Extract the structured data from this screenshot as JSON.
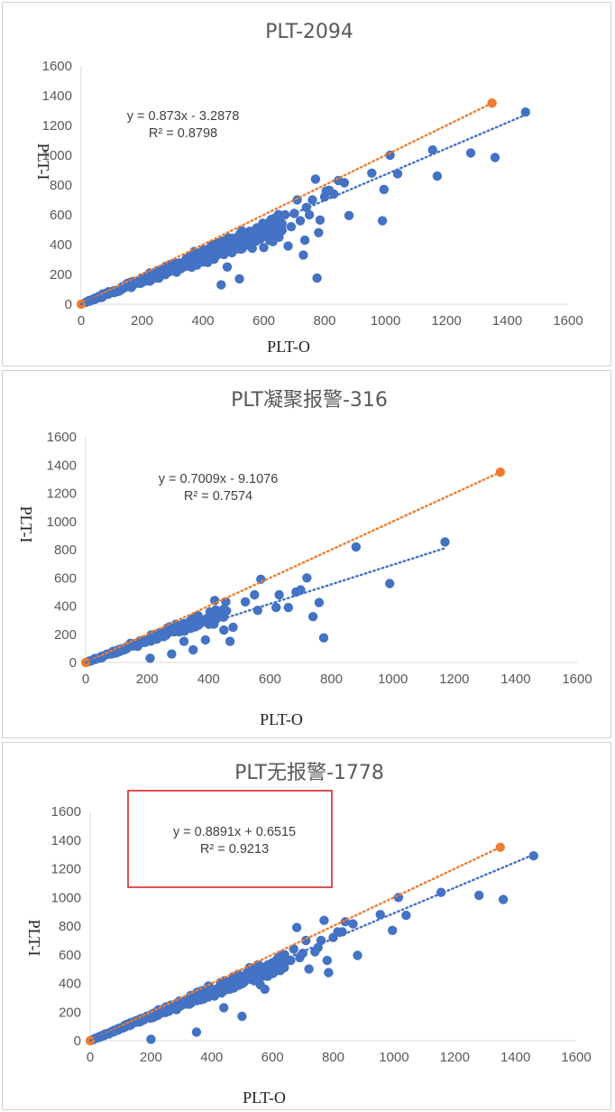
{
  "colors": {
    "series_points": "#4472c4",
    "identity_line": "#ed7d31",
    "highlight_box": "#d62728",
    "axis": "#d9d9d9",
    "text": "#595959"
  },
  "chart_data": [
    {
      "type": "scatter",
      "title": "PLT-2094",
      "xlabel": "PLT-O",
      "ylabel": "PLT-I",
      "xlim": [
        0,
        1600
      ],
      "ylim": [
        0,
        1600
      ],
      "xticks": [
        "0",
        "200",
        "400",
        "600",
        "800",
        "1000",
        "1200",
        "1400",
        "1600"
      ],
      "yticks": [
        "0",
        "200",
        "400",
        "600",
        "800",
        "1000",
        "1200",
        "1400",
        "1600"
      ],
      "grid": false,
      "trendline": {
        "equation": "y = 0.873x - 3.2878",
        "r2": "R² = 0.8798",
        "slope": 0.873,
        "intercept": -3.2878,
        "x_range": [
          0,
          1460
        ]
      },
      "identity_line": {
        "from": [
          0,
          0
        ],
        "to": [
          1350,
          1350
        ]
      },
      "series": [
        {
          "points": [
            [
              1460,
              1290
            ],
            [
              1360,
              985
            ],
            [
              1280,
              1015
            ],
            [
              1170,
              860
            ],
            [
              1155,
              1035
            ],
            [
              1040,
              875
            ],
            [
              1015,
              1000
            ],
            [
              990,
              560
            ],
            [
              995,
              770
            ],
            [
              955,
              880
            ],
            [
              880,
              595
            ],
            [
              865,
              815
            ],
            [
              845,
              830
            ],
            [
              830,
              740
            ],
            [
              815,
              765
            ],
            [
              805,
              760
            ],
            [
              800,
              720
            ],
            [
              780,
              480
            ],
            [
              785,
              565
            ],
            [
              775,
              175
            ],
            [
              770,
              840
            ],
            [
              760,
              700
            ],
            [
              750,
              600
            ],
            [
              740,
              650
            ],
            [
              735,
              430
            ],
            [
              730,
              330
            ],
            [
              720,
              560
            ],
            [
              710,
              700
            ],
            [
              700,
              610
            ],
            [
              690,
              520
            ],
            [
              680,
              390
            ],
            [
              670,
              600
            ],
            [
              660,
              540
            ],
            [
              650,
              450
            ],
            [
              640,
              580
            ],
            [
              630,
              420
            ],
            [
              620,
              500
            ],
            [
              600,
              380
            ],
            [
              560,
              430
            ],
            [
              520,
              170
            ],
            [
              480,
              250
            ],
            [
              460,
              130
            ]
          ],
          "cluster": {
            "x_range": [
              0,
              660
            ],
            "center_slope": 0.81,
            "spread": 0.17,
            "count": 480,
            "seed": 11
          }
        }
      ]
    },
    {
      "type": "scatter",
      "title": "PLT凝聚报警-316",
      "xlabel": "PLT-O",
      "ylabel": "PLT-I",
      "xlim": [
        0,
        1600
      ],
      "ylim": [
        0,
        1600
      ],
      "xticks": [
        "0",
        "200",
        "400",
        "600",
        "800",
        "1000",
        "1200",
        "1400",
        "1600"
      ],
      "yticks": [
        "0",
        "200",
        "400",
        "600",
        "800",
        "1000",
        "1200",
        "1400",
        "1600"
      ],
      "grid": false,
      "trendline": {
        "equation": "y = 0.7009x - 9.1076",
        "r2": "R² = 0.7574",
        "slope": 0.7009,
        "intercept": -9.1076,
        "x_range": [
          0,
          1170
        ]
      },
      "identity_line": {
        "from": [
          0,
          0
        ],
        "to": [
          1350,
          1350
        ]
      },
      "series": [
        {
          "points": [
            [
              1170,
              855
            ],
            [
              990,
              560
            ],
            [
              880,
              820
            ],
            [
              775,
              175
            ],
            [
              760,
              425
            ],
            [
              740,
              325
            ],
            [
              720,
              600
            ],
            [
              700,
              515
            ],
            [
              685,
              500
            ],
            [
              660,
              390
            ],
            [
              630,
              480
            ],
            [
              620,
              390
            ],
            [
              570,
              590
            ],
            [
              560,
              370
            ],
            [
              550,
              480
            ],
            [
              520,
              430
            ],
            [
              480,
              250
            ],
            [
              470,
              150
            ],
            [
              450,
              230
            ],
            [
              420,
              440
            ],
            [
              390,
              160
            ],
            [
              350,
              90
            ],
            [
              320,
              150
            ],
            [
              280,
              60
            ],
            [
              210,
              30
            ]
          ],
          "cluster": {
            "x_range": [
              0,
              460
            ],
            "center_slope": 0.8,
            "spread": 0.2,
            "count": 150,
            "seed": 23
          }
        }
      ]
    },
    {
      "type": "scatter",
      "title": "PLT无报警-1778",
      "xlabel": "PLT-O",
      "ylabel": "PLT-I",
      "xlim": [
        0,
        1600
      ],
      "ylim": [
        0,
        1600
      ],
      "xticks": [
        "0",
        "200",
        "400",
        "600",
        "800",
        "1000",
        "1200",
        "1400",
        "1600"
      ],
      "yticks": [
        "0",
        "200",
        "400",
        "600",
        "800",
        "1000",
        "1200",
        "1400",
        "1600"
      ],
      "grid": false,
      "trendline": {
        "equation": "y = 0.8891x + 0.6515",
        "r2": "R² = 0.9213",
        "slope": 0.8891,
        "intercept": 0.6515,
        "x_range": [
          0,
          1460
        ]
      },
      "identity_line": {
        "from": [
          0,
          0
        ],
        "to": [
          1350,
          1350
        ]
      },
      "series": [
        {
          "points": [
            [
              1460,
              1290
            ],
            [
              1360,
              985
            ],
            [
              1280,
              1015
            ],
            [
              1155,
              1035
            ],
            [
              1040,
              875
            ],
            [
              1015,
              1000
            ],
            [
              995,
              770
            ],
            [
              955,
              880
            ],
            [
              880,
              595
            ],
            [
              865,
              815
            ],
            [
              840,
              830
            ],
            [
              830,
              760
            ],
            [
              815,
              760
            ],
            [
              800,
              720
            ],
            [
              785,
              475
            ],
            [
              780,
              560
            ],
            [
              770,
              840
            ],
            [
              760,
              700
            ],
            [
              750,
              650
            ],
            [
              740,
              620
            ],
            [
              720,
              500
            ],
            [
              710,
              700
            ],
            [
              700,
              610
            ],
            [
              690,
              580
            ],
            [
              680,
              790
            ],
            [
              670,
              640
            ],
            [
              660,
              560
            ],
            [
              650,
              560
            ],
            [
              640,
              600
            ],
            [
              620,
              520
            ],
            [
              600,
              480
            ],
            [
              575,
              360
            ],
            [
              560,
              390
            ],
            [
              500,
              170
            ],
            [
              440,
              230
            ],
            [
              350,
              60
            ],
            [
              200,
              10
            ]
          ],
          "cluster": {
            "x_range": [
              0,
              640
            ],
            "center_slope": 0.86,
            "spread": 0.13,
            "count": 420,
            "seed": 37
          }
        }
      ]
    }
  ]
}
